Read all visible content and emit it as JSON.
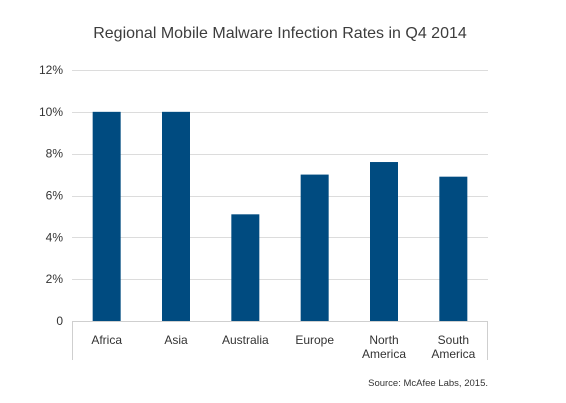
{
  "chart_data": {
    "type": "bar",
    "title": "Regional Mobile Malware Infection Rates in Q4 2014",
    "categories": [
      "Africa",
      "Asia",
      "Australia",
      "Europe",
      "North America",
      "South America"
    ],
    "category_lines": [
      [
        "Africa"
      ],
      [
        "Asia"
      ],
      [
        "Australia"
      ],
      [
        "Europe"
      ],
      [
        "North",
        "America"
      ],
      [
        "South",
        "America"
      ]
    ],
    "values": [
      10.0,
      10.0,
      5.1,
      7.0,
      7.6,
      6.9
    ],
    "ylim": [
      0,
      12
    ],
    "yticks": [
      0,
      2,
      4,
      6,
      8,
      10,
      12
    ],
    "ytick_labels": [
      "0",
      "2%",
      "4%",
      "6%",
      "8%",
      "10%",
      "12%"
    ],
    "xlabel": "",
    "ylabel": "",
    "grid": true,
    "bar_color": "#004b80",
    "source": "Source: McAfee Labs, 2015."
  }
}
